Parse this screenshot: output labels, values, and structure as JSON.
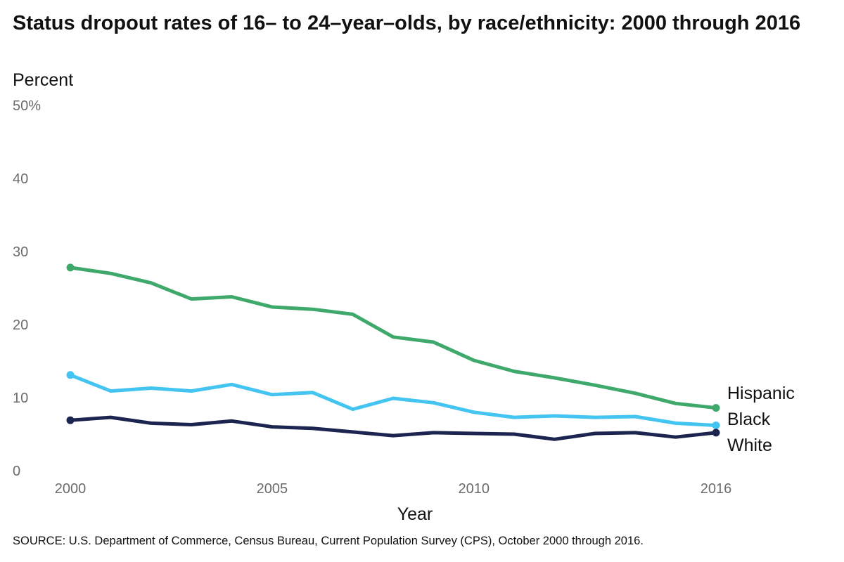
{
  "chart_data": {
    "type": "line",
    "title": "Status dropout rates of 16– to 24–year–olds, by race/ethnicity: 2000 through 2016",
    "ylabel": "Percent",
    "xlabel": "Year",
    "ylim": [
      0,
      50
    ],
    "xlim": [
      2000,
      2016
    ],
    "y_ticks": [
      {
        "value": 50,
        "label": "50%"
      },
      {
        "value": 40,
        "label": "40"
      },
      {
        "value": 30,
        "label": "30"
      },
      {
        "value": 20,
        "label": "20"
      },
      {
        "value": 10,
        "label": "10"
      },
      {
        "value": 0,
        "label": "0"
      }
    ],
    "x_ticks": [
      {
        "value": 2000,
        "label": "2000"
      },
      {
        "value": 2005,
        "label": "2005"
      },
      {
        "value": 2010,
        "label": "2010"
      },
      {
        "value": 2016,
        "label": "2016"
      }
    ],
    "grid": false,
    "legend": "direct labels at right end of each line",
    "x": [
      2000,
      2001,
      2002,
      2003,
      2004,
      2005,
      2006,
      2007,
      2008,
      2009,
      2010,
      2011,
      2012,
      2013,
      2014,
      2015,
      2016
    ],
    "series": [
      {
        "name": "Hispanic",
        "color": "#3fa96b",
        "values": [
          27.8,
          27.0,
          25.7,
          23.5,
          23.8,
          22.4,
          22.1,
          21.4,
          18.3,
          17.6,
          15.1,
          13.6,
          12.7,
          11.7,
          10.6,
          9.2,
          8.6
        ]
      },
      {
        "name": "Black",
        "color": "#44c5f1",
        "values": [
          13.1,
          10.9,
          11.3,
          10.9,
          11.8,
          10.4,
          10.7,
          8.4,
          9.9,
          9.3,
          8.0,
          7.3,
          7.5,
          7.3,
          7.4,
          6.5,
          6.2
        ]
      },
      {
        "name": "White",
        "color": "#1c2550",
        "values": [
          6.9,
          7.3,
          6.5,
          6.3,
          6.8,
          6.0,
          5.8,
          5.3,
          4.8,
          5.2,
          5.1,
          5.0,
          4.3,
          5.1,
          5.2,
          4.6,
          5.2
        ]
      }
    ]
  },
  "source_note": "SOURCE: U.S. Department of Commerce, Census Bureau, Current Population Survey (CPS), October 2000 through 2016."
}
